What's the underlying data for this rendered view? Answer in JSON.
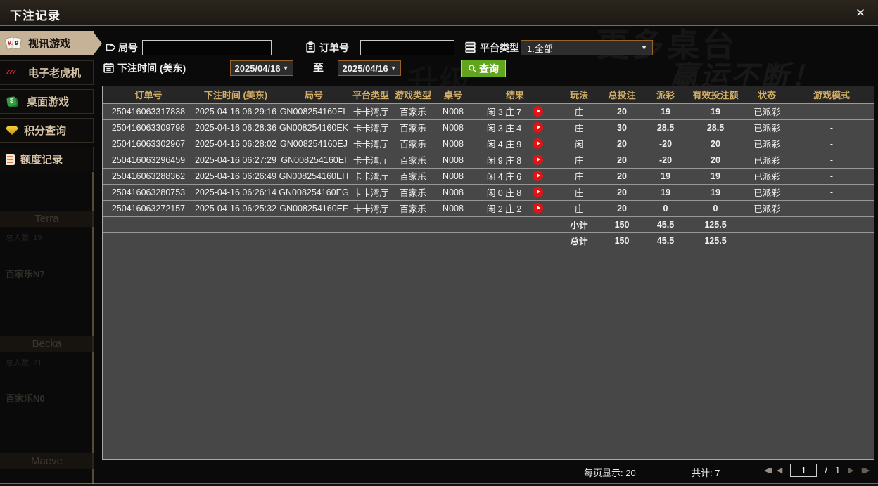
{
  "window": {
    "title": "下注记录",
    "close": "✕"
  },
  "sidebar": {
    "items": [
      {
        "label": "视讯游戏",
        "icon": "playing-cards-icon",
        "active": true
      },
      {
        "label": "电子老虎机",
        "icon": "slot-777-icon",
        "active": false
      },
      {
        "label": "桌面游戏",
        "icon": "table-games-icon",
        "active": false
      },
      {
        "label": "积分查询",
        "icon": "diamond-icon",
        "active": false
      },
      {
        "label": "额度记录",
        "icon": "document-icon",
        "active": false
      }
    ]
  },
  "filters": {
    "round_label": "局号",
    "round_value": "",
    "order_label": "订单号",
    "order_value": "",
    "platform_label": "平台类型",
    "platform_value": "1.全部",
    "time_label": "下注时间 (美东)",
    "date_from": "2025/04/16",
    "to_label": "至",
    "date_to": "2025/04/16",
    "dropdown_arrow": "▼",
    "query_label": "查询"
  },
  "table": {
    "headers": [
      "订单号",
      "下注时间 (美东)",
      "局号",
      "平台类型",
      "游戏类型",
      "桌号",
      "结果",
      "玩法",
      "总投注",
      "派彩",
      "有效投注额",
      "状态",
      "游戏模式"
    ],
    "rows": [
      {
        "order": "250416063317838",
        "time": "2025-04-16 06:29:16",
        "round": "GN008254160EL",
        "platform": "卡卡湾厅",
        "game": "百家乐",
        "table_no": "N008",
        "result": "闲 3 庄 7",
        "play": "庄",
        "total": "20",
        "payout": "19",
        "payout_color": "red",
        "valid": "19",
        "status": "已派彩",
        "mode": "-"
      },
      {
        "order": "250416063309798",
        "time": "2025-04-16 06:28:36",
        "round": "GN008254160EK",
        "platform": "卡卡湾厅",
        "game": "百家乐",
        "table_no": "N008",
        "result": "闲 3 庄 4",
        "play": "庄",
        "total": "30",
        "payout": "28.5",
        "payout_color": "red",
        "valid": "28.5",
        "status": "已派彩",
        "mode": "-"
      },
      {
        "order": "250416063302967",
        "time": "2025-04-16 06:28:02",
        "round": "GN008254160EJ",
        "platform": "卡卡湾厅",
        "game": "百家乐",
        "table_no": "N008",
        "result": "闲 4 庄 9",
        "play": "闲",
        "total": "20",
        "payout": "-20",
        "payout_color": "green",
        "valid": "20",
        "status": "已派彩",
        "mode": "-"
      },
      {
        "order": "250416063296459",
        "time": "2025-04-16 06:27:29",
        "round": "GN008254160EI",
        "platform": "卡卡湾厅",
        "game": "百家乐",
        "table_no": "N008",
        "result": "闲 9 庄 8",
        "play": "庄",
        "total": "20",
        "payout": "-20",
        "payout_color": "green",
        "valid": "20",
        "status": "已派彩",
        "mode": "-"
      },
      {
        "order": "250416063288362",
        "time": "2025-04-16 06:26:49",
        "round": "GN008254160EH",
        "platform": "卡卡湾厅",
        "game": "百家乐",
        "table_no": "N008",
        "result": "闲 4 庄 6",
        "play": "庄",
        "total": "20",
        "payout": "19",
        "payout_color": "red",
        "valid": "19",
        "status": "已派彩",
        "mode": "-"
      },
      {
        "order": "250416063280753",
        "time": "2025-04-16 06:26:14",
        "round": "GN008254160EG",
        "platform": "卡卡湾厅",
        "game": "百家乐",
        "table_no": "N008",
        "result": "闲 0 庄 8",
        "play": "庄",
        "total": "20",
        "payout": "19",
        "payout_color": "red",
        "valid": "19",
        "status": "已派彩",
        "mode": "-"
      },
      {
        "order": "250416063272157",
        "time": "2025-04-16 06:25:32",
        "round": "GN008254160EF",
        "platform": "卡卡湾厅",
        "game": "百家乐",
        "table_no": "N008",
        "result": "闲 2 庄 2",
        "play": "庄",
        "total": "20",
        "payout": "0",
        "payout_color": "zero",
        "valid": "0",
        "status": "已派彩",
        "mode": "-"
      }
    ],
    "subtotal": {
      "label": "小计",
      "total": "150",
      "payout": "45.5",
      "valid": "125.5"
    },
    "grand_total": {
      "label": "总计",
      "total": "150",
      "payout": "45.5",
      "valid": "125.5"
    }
  },
  "pagination": {
    "per_page": "每页显示: 20",
    "total_count": "共计: 7",
    "first": "◀◀",
    "prev": "◀",
    "current_page": "1",
    "divider": "/",
    "total_pages": "1",
    "next": "▶",
    "last": "▶▶"
  },
  "ghosts": {
    "banner1": "更多桌台",
    "banner2": "赢运不断！",
    "banner3": "升级"
  },
  "lobby": {
    "name1": "Terra",
    "count1": "总人数: 19",
    "head1": "百家乐N7",
    "name2": "Becka",
    "count2": "总人数: 21",
    "head2": "百家乐N0",
    "name3": "Maeve"
  },
  "colors": {
    "accent_tan": "#c6b297",
    "header_gold": "#d2ae66",
    "row_bg": "#474747",
    "win_red": "#a42d34",
    "loss_green": "#7fd400",
    "status_green": "#35cf3a",
    "total_yellow": "#e8e400",
    "query_green": "#61a51f",
    "date_border": "#9a6428"
  }
}
